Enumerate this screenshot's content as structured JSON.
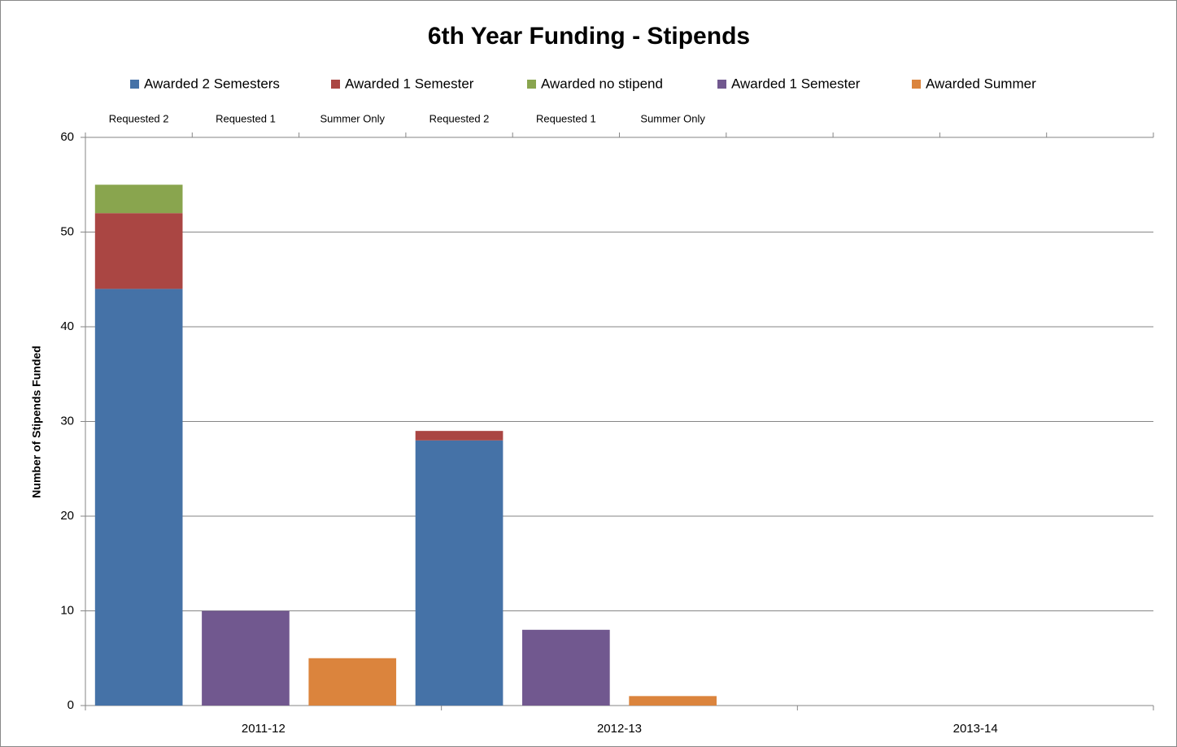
{
  "chart_data": {
    "type": "stacked_bar",
    "title": "6th Year Funding - Stipends",
    "y_label": "Number of Stipends Funded",
    "categories": [
      "Requested 2",
      "Requested 1",
      "Summer Only",
      "Requested 2",
      "Requested 1",
      "Summer Only",
      null,
      null,
      null,
      null
    ],
    "groups": [
      "2011-12",
      "2012-13",
      "2013-14"
    ],
    "series": [
      {
        "name": "Awarded 2 Semesters",
        "color": "#4572a7",
        "values": [
          44,
          null,
          null,
          28,
          null,
          null,
          null,
          null,
          null,
          null
        ]
      },
      {
        "name": "Awarded 1 Semester",
        "color": "#aa4643",
        "values": [
          8,
          null,
          null,
          1,
          null,
          null,
          null,
          null,
          null,
          null
        ]
      },
      {
        "name": "Awarded no stipend",
        "color": "#89a54e",
        "values": [
          3,
          null,
          null,
          null,
          null,
          null,
          null,
          null,
          null,
          null
        ]
      },
      {
        "name": "Awarded 1 Semester",
        "color": "#71588f",
        "values": [
          null,
          10,
          null,
          null,
          8,
          null,
          null,
          null,
          null,
          null
        ]
      },
      {
        "name": "Awarded Summer",
        "color": "#db843d",
        "values": [
          null,
          null,
          5,
          null,
          null,
          1,
          null,
          null,
          null,
          null
        ]
      }
    ],
    "ylim": [
      0,
      60
    ],
    "yticks": [
      0,
      10,
      20,
      30,
      40,
      50,
      60
    ],
    "grid": true,
    "legend": "top"
  }
}
